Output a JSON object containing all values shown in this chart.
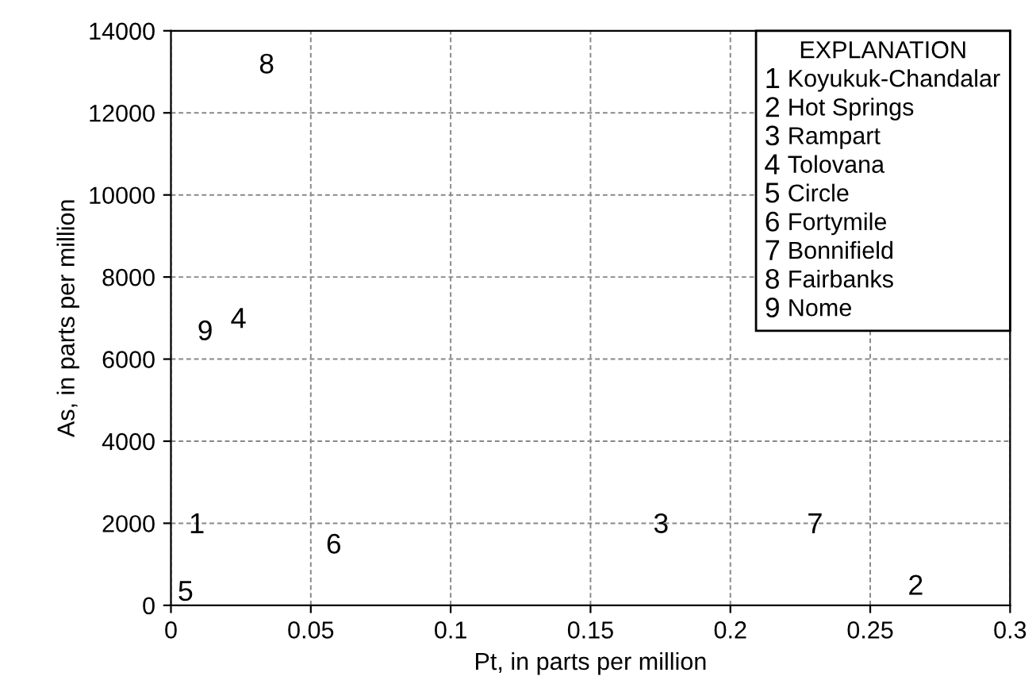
{
  "chart_data": {
    "type": "scatter",
    "xlabel": "Pt, in parts per million",
    "ylabel": "As, in parts per million",
    "legend_title": "EXPLANATION",
    "xlim": [
      0,
      0.3
    ],
    "xticks": [
      0,
      0.05,
      0.1,
      0.15,
      0.2,
      0.25,
      0.3
    ],
    "ylim": [
      0,
      14000
    ],
    "yticks": [
      0,
      2000,
      4000,
      6000,
      8000,
      10000,
      12000,
      14000
    ],
    "grid": true,
    "legend": "top right",
    "series": [
      {
        "name": "Koyukuk-Chandalar",
        "color": "#000000",
        "x": [
          0.009
        ],
        "values": [
          2000
        ]
      },
      {
        "name": "Hot Springs",
        "color": "#000000",
        "x": [
          0.266
        ],
        "values": [
          500
        ]
      },
      {
        "name": "Rampart",
        "color": "#000000",
        "x": [
          0.175
        ],
        "values": [
          2000
        ]
      },
      {
        "name": "Tolovana",
        "color": "#000000",
        "x": [
          0.024
        ],
        "values": [
          7000
        ]
      },
      {
        "name": "Circle",
        "color": "#000000",
        "x": [
          0.005
        ],
        "values": [
          350
        ]
      },
      {
        "name": "Fortymile",
        "color": "#000000",
        "x": [
          0.058
        ],
        "values": [
          1500
        ]
      },
      {
        "name": "Bonnifield",
        "color": "#000000",
        "x": [
          0.23
        ],
        "values": [
          2000
        ]
      },
      {
        "name": "Fairbanks",
        "color": "#000000",
        "x": [
          0.034
        ],
        "values": [
          13200
        ]
      },
      {
        "name": "Nome",
        "color": "#000000",
        "x": [
          0.012
        ],
        "values": [
          6700
        ]
      }
    ]
  }
}
